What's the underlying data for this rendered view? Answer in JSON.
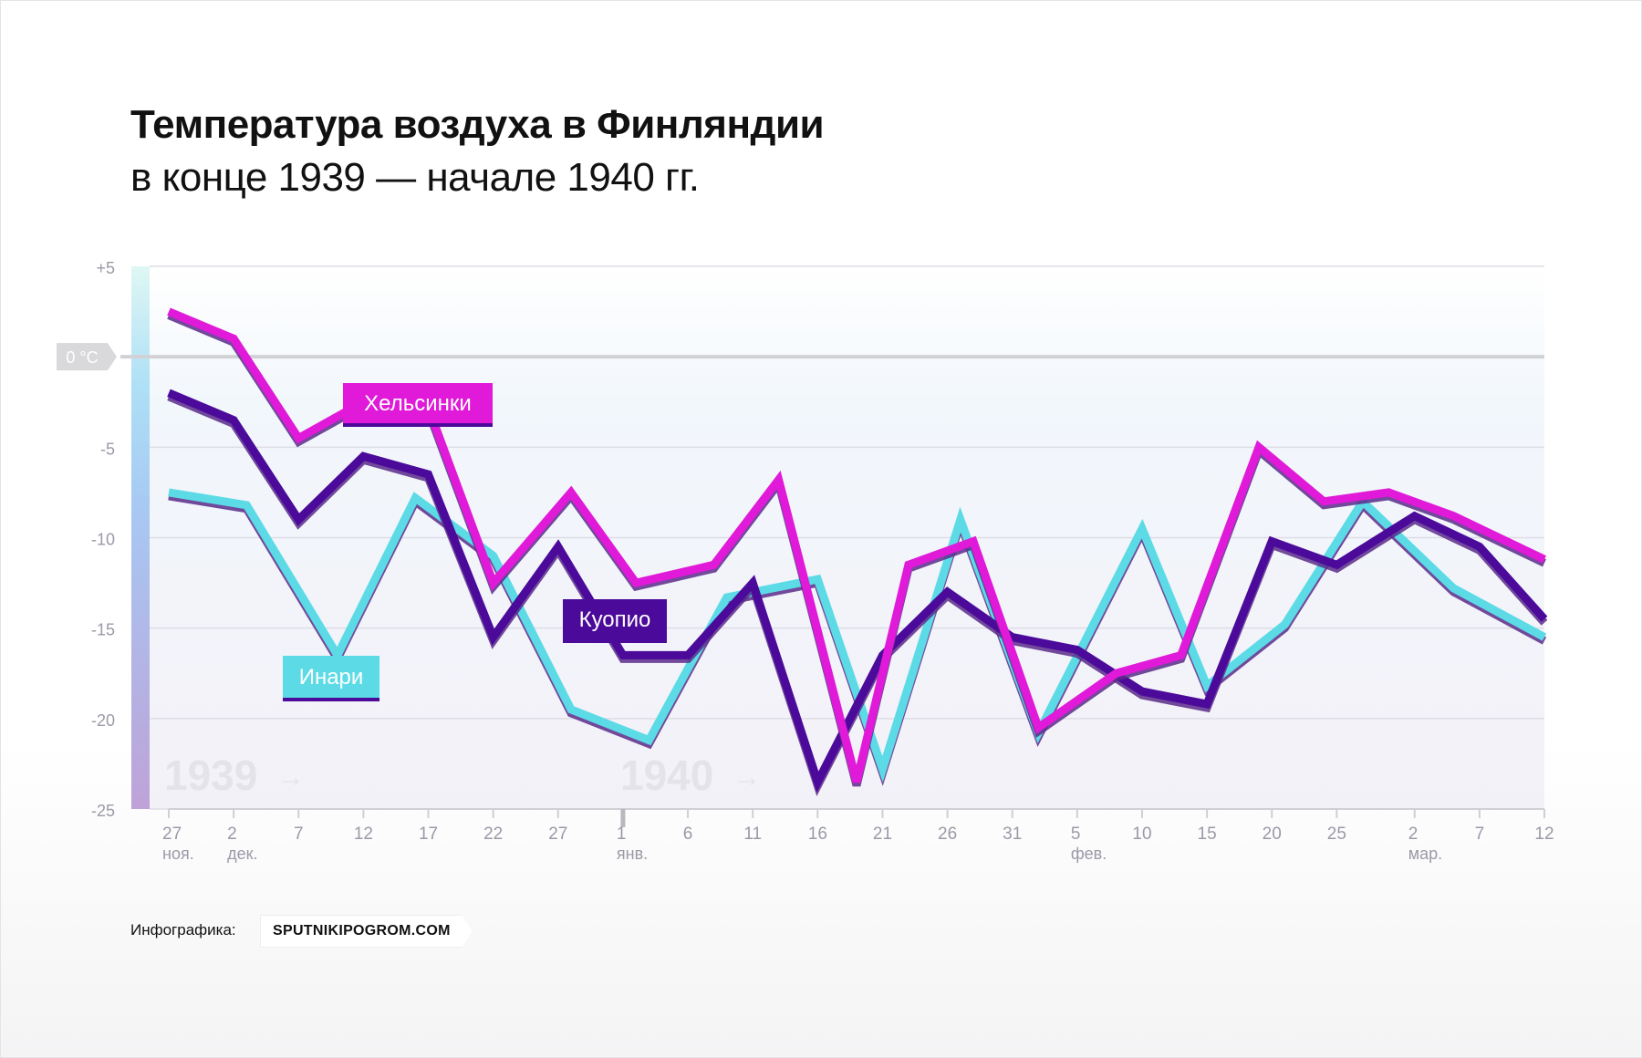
{
  "title": "Температура воздуха в Финляндии",
  "subtitle": "в конце 1939 — начале 1940 гг.",
  "footer": {
    "label": "Инфографика:",
    "source": "SPUTNIKIPOGROM.COM"
  },
  "chart_data": {
    "type": "line",
    "title": "Температура воздуха в Финляндии",
    "subtitle": "в конце 1939 — начале 1940 гг.",
    "ylim": [
      -25,
      5
    ],
    "y_ticks": [
      "+5",
      "-5",
      "-10",
      "-15",
      "-20",
      "-25"
    ],
    "y_tick_values": [
      5,
      -5,
      -10,
      -15,
      -20,
      -25
    ],
    "zero_label": "0 °C",
    "grid": true,
    "x_ticks": [
      {
        "day": "27",
        "month": "ноя."
      },
      {
        "day": "2",
        "month": "дек."
      },
      {
        "day": "7",
        "month": ""
      },
      {
        "day": "12",
        "month": ""
      },
      {
        "day": "17",
        "month": ""
      },
      {
        "day": "22",
        "month": ""
      },
      {
        "day": "27",
        "month": ""
      },
      {
        "day": "1",
        "month": "янв."
      },
      {
        "day": "6",
        "month": ""
      },
      {
        "day": "11",
        "month": ""
      },
      {
        "day": "16",
        "month": ""
      },
      {
        "day": "21",
        "month": ""
      },
      {
        "day": "26",
        "month": ""
      },
      {
        "day": "31",
        "month": ""
      },
      {
        "day": "5",
        "month": "фев."
      },
      {
        "day": "10",
        "month": ""
      },
      {
        "day": "15",
        "month": ""
      },
      {
        "day": "20",
        "month": ""
      },
      {
        "day": "25",
        "month": ""
      },
      {
        "day": "2",
        "month": "мар."
      },
      {
        "day": "7",
        "month": ""
      },
      {
        "day": "12",
        "month": ""
      }
    ],
    "year_marks": [
      {
        "label": "1939",
        "arrow": "→"
      },
      {
        "label": "1940",
        "arrow": "→"
      }
    ],
    "series": [
      {
        "name": "Хельсинки",
        "color": "#e01ad8",
        "x": [
          "1939-11-27",
          "1939-12-02",
          "1939-12-07",
          "1939-12-12",
          "1939-12-17",
          "1939-12-22",
          "1939-12-28",
          "1940-01-02",
          "1940-01-08",
          "1940-01-13",
          "1940-01-19",
          "1940-01-23",
          "1940-01-28",
          "1940-02-02",
          "1940-02-08",
          "1940-02-13",
          "1940-02-19",
          "1940-02-24",
          "1940-02-29",
          "1940-03-05",
          "1940-03-12"
        ],
        "y": [
          2.5,
          1.0,
          -4.5,
          -2.5,
          -2.8,
          -12.5,
          -7.5,
          -12.5,
          -11.5,
          -6.8,
          -23.5,
          -11.5,
          -10.2,
          -20.5,
          -17.5,
          -16.5,
          -5.0,
          -8.0,
          -7.5,
          -8.8,
          -11.2
        ]
      },
      {
        "name": "Куопио",
        "color": "#4b0a9a",
        "x": [
          "1939-11-27",
          "1939-12-02",
          "1939-12-07",
          "1939-12-12",
          "1939-12-17",
          "1939-12-22",
          "1939-12-27",
          "1940-01-01",
          "1940-01-06",
          "1940-01-11",
          "1940-01-16",
          "1940-01-21",
          "1940-01-26",
          "1940-01-31",
          "1940-02-05",
          "1940-02-10",
          "1940-02-15",
          "1940-02-20",
          "1940-02-25",
          "1940-03-02",
          "1940-03-07",
          "1940-03-12"
        ],
        "y": [
          -2.0,
          -3.5,
          -9.0,
          -5.5,
          -6.5,
          -15.5,
          -10.5,
          -16.5,
          -16.5,
          -12.5,
          -23.5,
          -16.5,
          -13.0,
          -15.5,
          -16.2,
          -18.5,
          -19.2,
          -10.2,
          -11.5,
          -8.8,
          -10.5,
          -14.5
        ]
      },
      {
        "name": "Инари",
        "color": "#5cdbe6",
        "x": [
          "1939-11-27",
          "1939-12-03",
          "1939-12-10",
          "1939-12-16",
          "1939-12-22",
          "1939-12-28",
          "1940-01-03",
          "1940-01-09",
          "1940-01-16",
          "1940-01-21",
          "1940-01-27",
          "1940-02-02",
          "1940-02-10",
          "1940-02-15",
          "1940-02-21",
          "1940-02-27",
          "1940-03-05",
          "1940-03-12"
        ],
        "y": [
          -7.5,
          -8.2,
          -16.5,
          -7.8,
          -11.0,
          -19.5,
          -21.2,
          -13.3,
          -12.3,
          -22.8,
          -9.0,
          -20.8,
          -9.5,
          -18.2,
          -14.8,
          -8.0,
          -12.8,
          -15.5
        ]
      }
    ]
  }
}
